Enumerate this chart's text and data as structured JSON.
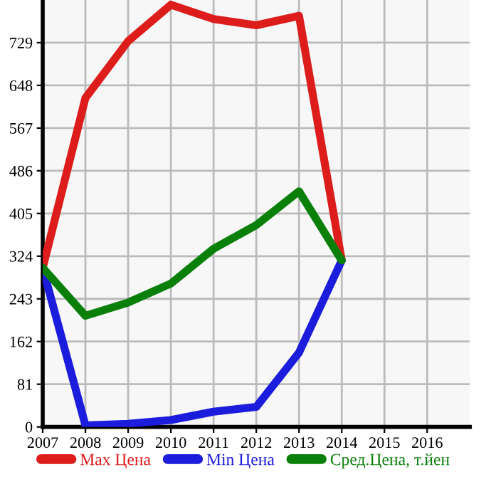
{
  "chart_data": {
    "type": "line",
    "x": [
      2007,
      2008,
      2009,
      2010,
      2011,
      2012,
      2013,
      2014
    ],
    "series": [
      {
        "name": "Max Цена",
        "color": "#dd1c1c",
        "values": [
          302,
          624,
          732,
          801,
          774,
          762,
          780,
          316
        ]
      },
      {
        "name": "Min Цена",
        "color": "#1c1cdd",
        "values": [
          302,
          3,
          6,
          13,
          29,
          38,
          141,
          316
        ]
      },
      {
        "name": "Сред.Цена, т.йен",
        "color": "#0a800a",
        "values": [
          302,
          211,
          236,
          272,
          338,
          383,
          447,
          316
        ]
      }
    ],
    "xlim": [
      2007,
      2017
    ],
    "xticks": [
      2007,
      2008,
      2009,
      2010,
      2011,
      2012,
      2013,
      2014,
      2015,
      2016
    ],
    "ylim": [
      0,
      810
    ],
    "yticks": [
      0,
      81,
      162,
      243,
      324,
      405,
      486,
      567,
      648,
      729
    ],
    "grid": true,
    "legend": "bottom",
    "marker": "none",
    "line_style": "solid"
  }
}
